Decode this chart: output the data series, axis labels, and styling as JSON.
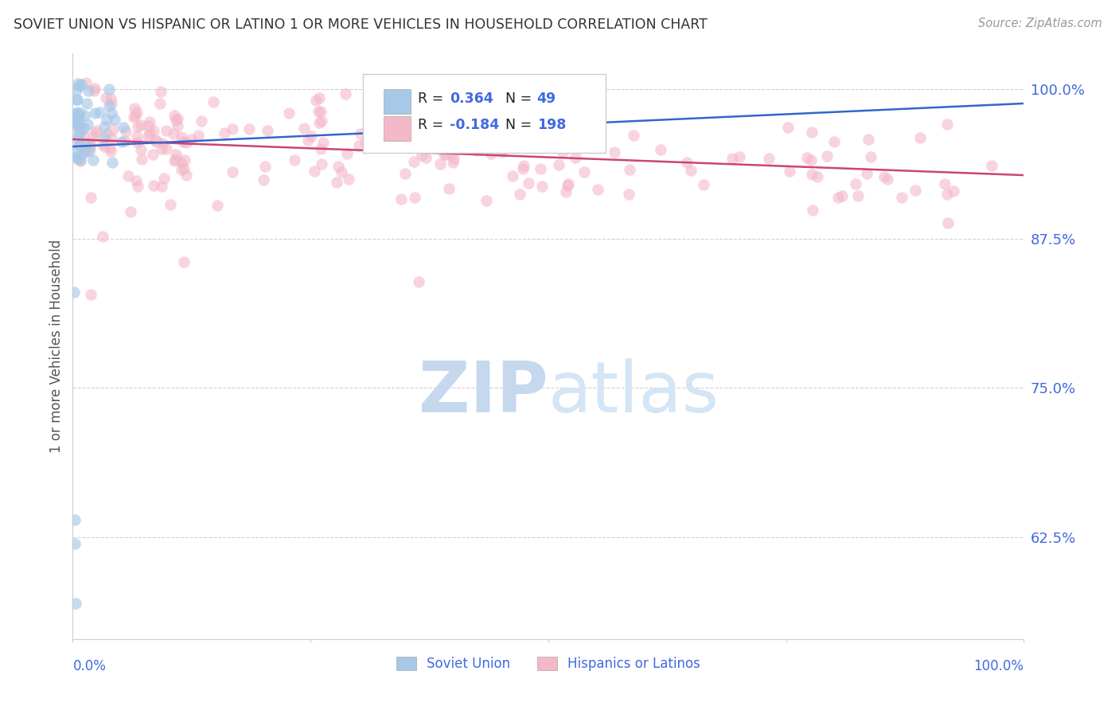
{
  "title": "SOVIET UNION VS HISPANIC OR LATINO 1 OR MORE VEHICLES IN HOUSEHOLD CORRELATION CHART",
  "source": "Source: ZipAtlas.com",
  "ylabel": "1 or more Vehicles in Household",
  "legend_blue_r_val": "0.364",
  "legend_blue_n_val": "49",
  "legend_pink_r_val": "-0.184",
  "legend_pink_n_val": "198",
  "legend_label_blue": "Soviet Union",
  "legend_label_pink": "Hispanics or Latinos",
  "ytick_labels": [
    "100.0%",
    "87.5%",
    "75.0%",
    "62.5%"
  ],
  "ytick_values": [
    1.0,
    0.875,
    0.75,
    0.625
  ],
  "xlim": [
    0.0,
    1.0
  ],
  "ylim": [
    0.54,
    1.03
  ],
  "blue_color": "#a8c8e8",
  "pink_color": "#f4b8c8",
  "blue_line_color": "#3366cc",
  "pink_line_color": "#cc4477",
  "title_color": "#333333",
  "source_color": "#999999",
  "tick_label_color": "#4169e1",
  "watermark_zip_color": "#c8dff0",
  "watermark_atlas_color": "#d8e8f4",
  "background_color": "#ffffff",
  "grid_color": "#cccccc",
  "marker_size": 110,
  "blue_trend_y_start": 0.952,
  "blue_trend_y_end": 0.988,
  "pink_trend_y_start": 0.958,
  "pink_trend_y_end": 0.928
}
